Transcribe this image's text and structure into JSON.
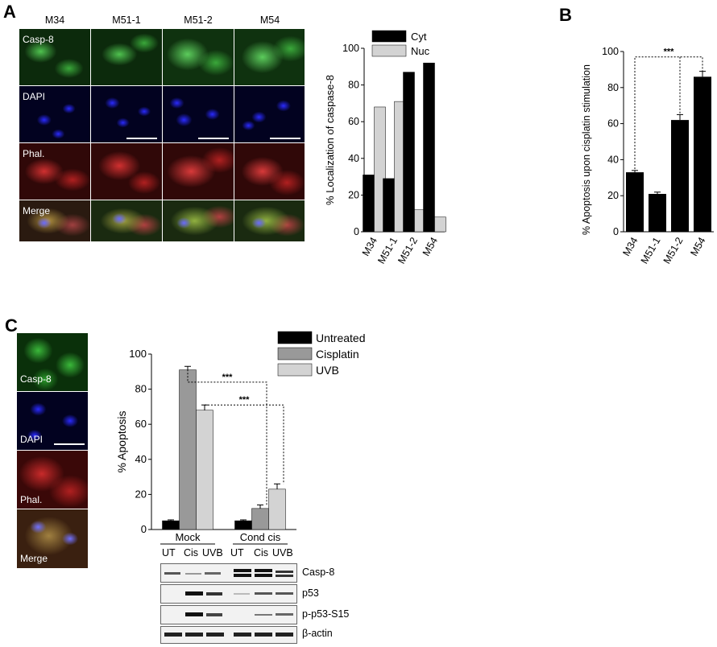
{
  "panels": {
    "A": "A",
    "B": "B",
    "C": "C"
  },
  "micrograph_A": {
    "columns": [
      "M34",
      "M51-1",
      "M51-2",
      "M54"
    ],
    "rows": [
      "Casp-8",
      "DAPI",
      "Phal.",
      "Merge"
    ]
  },
  "micrograph_C": {
    "rows": [
      "Casp-8",
      "DAPI",
      "Phal.",
      "Merge"
    ]
  },
  "colors": {
    "green": "#2fa02f",
    "blue": "#1a1ad8",
    "red": "#c81a1a",
    "black": "#000000",
    "gray": "#999999",
    "lightgray": "#d3d3d3"
  },
  "chart_data": [
    {
      "type": "bar",
      "categories": [
        "M34",
        "M51-1",
        "M51-2",
        "M54"
      ],
      "series": [
        {
          "name": "Cyt",
          "values": [
            31,
            29,
            87,
            92
          ]
        },
        {
          "name": "Nuc",
          "values": [
            68,
            71,
            12,
            8
          ]
        }
      ],
      "ylabel": "% Localization of caspase-8",
      "ylim": [
        0,
        100
      ],
      "yticks": [
        0,
        20,
        40,
        60,
        80,
        100
      ],
      "legend": "top"
    },
    {
      "type": "bar",
      "categories": [
        "M34",
        "M51-1",
        "M51-2",
        "M54"
      ],
      "values": [
        33,
        21,
        62,
        86
      ],
      "errors": [
        1,
        1,
        3,
        3
      ],
      "ylabel": "% Apoptosis upon cisplatin stimulation",
      "ylim": [
        0,
        100
      ],
      "yticks": [
        0,
        20,
        40,
        60,
        80,
        100
      ],
      "significance": "***"
    },
    {
      "type": "bar",
      "groups": [
        "Mock",
        "Cond cis"
      ],
      "series": [
        {
          "name": "Untreated",
          "values": [
            5,
            5
          ],
          "errors": [
            0.5,
            0.5
          ]
        },
        {
          "name": "Cisplatin",
          "values": [
            91,
            12
          ],
          "errors": [
            2,
            2
          ]
        },
        {
          "name": "UVB",
          "values": [
            68,
            23
          ],
          "errors": [
            3,
            3
          ]
        }
      ],
      "ylabel": "% Apoptosis",
      "ylim": [
        0,
        100
      ],
      "yticks": [
        0,
        20,
        40,
        60,
        80,
        100
      ],
      "significance": [
        "***",
        "***"
      ],
      "legend": "top-right"
    }
  ],
  "blot": {
    "lanes": [
      "UT",
      "Cis",
      "UVB",
      "UT",
      "Cis",
      "UVB"
    ],
    "rows": [
      "Casp-8",
      "p53",
      "p-p53-S15",
      "β-actin"
    ]
  }
}
